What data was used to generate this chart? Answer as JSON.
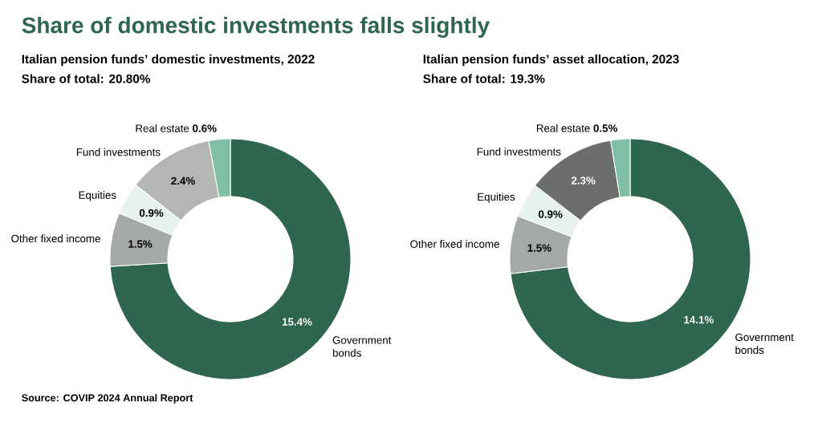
{
  "chart_data": [
    {
      "type": "donut",
      "title": "Share of domestic investments falls slightly",
      "subtitle": "Italian pension funds’ domestic investments, 2022",
      "categories": [
        "Government bonds",
        "Other fixed income",
        "Equities",
        "Fund investments",
        "Real estate"
      ],
      "values": [
        15.4,
        1.5,
        0.9,
        2.4,
        0.6
      ],
      "value_labels": [
        "15.4%",
        "1.5%",
        "0.9%",
        "2.4%",
        "0.6%"
      ],
      "colors": [
        "#2e6650",
        "#a3aaa5",
        "#e6f2ec",
        "#b4b6b4",
        "#80bfa4"
      ],
      "annotations": [
        "Share of total: 20.80%",
        "Source: COVIP 2024 Annual Report"
      ]
    },
    {
      "type": "donut",
      "subtitle": "Italian pension funds’ asset allocation, 2023",
      "categories": [
        "Government bonds",
        "Other fixed income",
        "Equities",
        "Fund investments",
        "Real estate"
      ],
      "values": [
        14.1,
        1.5,
        0.9,
        2.3,
        0.5
      ],
      "value_labels": [
        "14.1%",
        "1.5%",
        "0.9%",
        "2.3%",
        "0.5%"
      ],
      "colors": [
        "#2e6650",
        "#a3aaa5",
        "#e6f2ec",
        "#6b6e6c",
        "#80bfa4"
      ],
      "annotations": [
        "Share of total: 19.3%"
      ]
    }
  ]
}
